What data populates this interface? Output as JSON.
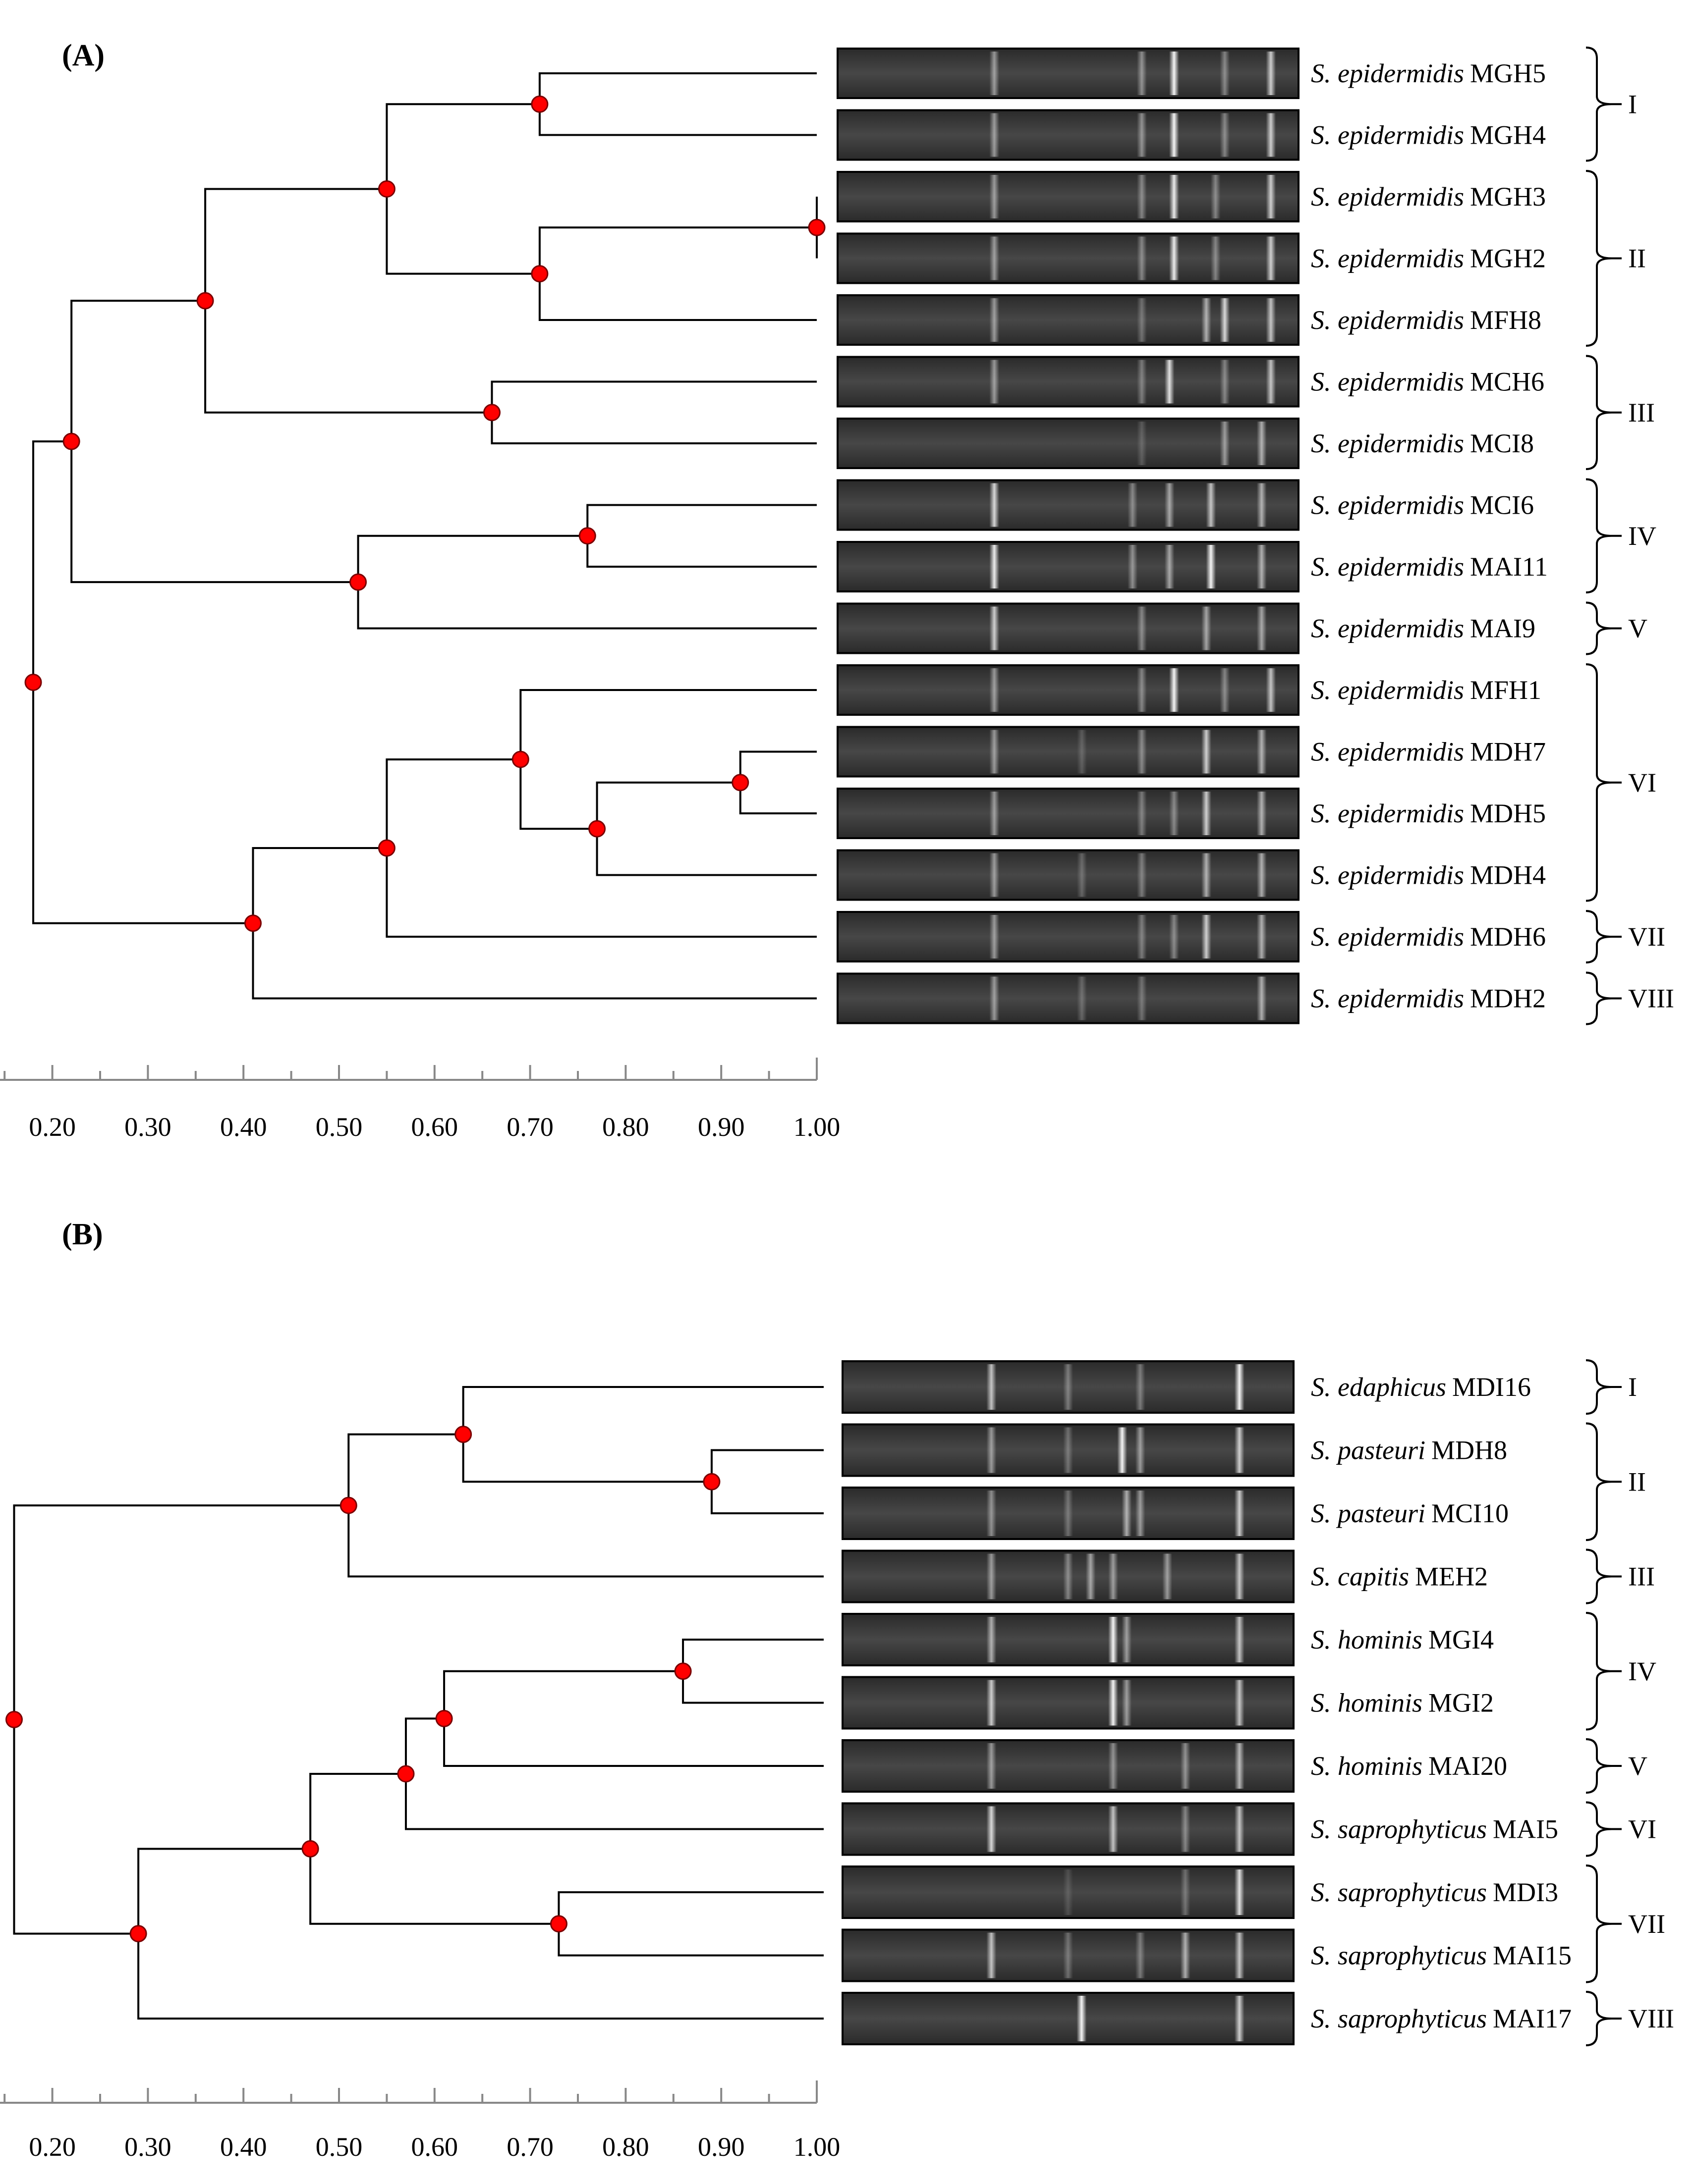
{
  "panels": [
    {
      "label": "(A)",
      "scale": {
        "ticks": [
          "0.20",
          "0.30",
          "0.40",
          "0.50",
          "0.60",
          "0.70",
          "0.80",
          "0.90",
          "1.00"
        ],
        "min": 0.14,
        "max": 1.0
      },
      "leaves": [
        {
          "species": "S. epidermidis",
          "strain": "MGH5"
        },
        {
          "species": "S. epidermidis",
          "strain": "MGH4"
        },
        {
          "species": "S. epidermidis",
          "strain": "MGH3"
        },
        {
          "species": "S. epidermidis",
          "strain": "MGH2"
        },
        {
          "species": "S. epidermidis",
          "strain": "MFH8"
        },
        {
          "species": "S. epidermidis",
          "strain": "MCH6"
        },
        {
          "species": "S. epidermidis",
          "strain": "MCI8"
        },
        {
          "species": "S. epidermidis",
          "strain": "MCI6"
        },
        {
          "species": "S. epidermidis",
          "strain": "MAI11"
        },
        {
          "species": "S. epidermidis",
          "strain": "MAI9"
        },
        {
          "species": "S. epidermidis",
          "strain": "MFH1"
        },
        {
          "species": "S. epidermidis",
          "strain": "MDH7"
        },
        {
          "species": "S. epidermidis",
          "strain": "MDH5"
        },
        {
          "species": "S. epidermidis",
          "strain": "MDH4"
        },
        {
          "species": "S. epidermidis",
          "strain": "MDH6"
        },
        {
          "species": "S. epidermidis",
          "strain": "MDH2"
        }
      ],
      "nodes": [
        {
          "sim": 0.71,
          "kids": [
            "L0",
            "L1"
          ]
        },
        {
          "sim": 1.0,
          "kids": [
            "L2",
            "L3"
          ]
        },
        {
          "sim": 0.71,
          "kids": [
            "N1",
            "L4"
          ]
        },
        {
          "sim": 0.55,
          "kids": [
            "N0",
            "N2"
          ]
        },
        {
          "sim": 0.66,
          "kids": [
            "L5",
            "L6"
          ]
        },
        {
          "sim": 0.36,
          "kids": [
            "N3",
            "N4"
          ]
        },
        {
          "sim": 0.76,
          "kids": [
            "L7",
            "L8"
          ]
        },
        {
          "sim": 0.52,
          "kids": [
            "N6",
            "L9"
          ]
        },
        {
          "sim": 0.22,
          "kids": [
            "N5",
            "N7"
          ]
        },
        {
          "sim": 0.92,
          "kids": [
            "L11",
            "L12"
          ]
        },
        {
          "sim": 0.77,
          "kids": [
            "N9",
            "L13"
          ]
        },
        {
          "sim": 0.69,
          "kids": [
            "L10",
            "N10"
          ]
        },
        {
          "sim": 0.55,
          "kids": [
            "N11",
            "L14"
          ]
        },
        {
          "sim": 0.41,
          "kids": [
            "N12",
            "L15"
          ]
        },
        {
          "sim": 0.18,
          "kids": [
            "N8",
            "N13"
          ]
        }
      ],
      "clusters": [
        {
          "label": "I",
          "from": 0,
          "to": 1
        },
        {
          "label": "II",
          "from": 2,
          "to": 4
        },
        {
          "label": "III",
          "from": 5,
          "to": 6
        },
        {
          "label": "IV",
          "from": 7,
          "to": 8
        },
        {
          "label": "V",
          "from": 9,
          "to": 9
        },
        {
          "label": "VI",
          "from": 10,
          "to": 13
        },
        {
          "label": "VII",
          "from": 14,
          "to": 14
        },
        {
          "label": "VIII",
          "from": 15,
          "to": 15
        }
      ],
      "bands": [
        [
          [
            0.34,
            0.5
          ],
          [
            0.66,
            0.45
          ],
          [
            0.73,
            0.95
          ],
          [
            0.84,
            0.4
          ],
          [
            0.94,
            0.75
          ]
        ],
        [
          [
            0.34,
            0.5
          ],
          [
            0.66,
            0.45
          ],
          [
            0.73,
            0.95
          ],
          [
            0.84,
            0.4
          ],
          [
            0.94,
            0.75
          ]
        ],
        [
          [
            0.34,
            0.5
          ],
          [
            0.66,
            0.4
          ],
          [
            0.73,
            0.9
          ],
          [
            0.82,
            0.4
          ],
          [
            0.94,
            0.75
          ]
        ],
        [
          [
            0.34,
            0.5
          ],
          [
            0.66,
            0.4
          ],
          [
            0.73,
            0.9
          ],
          [
            0.82,
            0.4
          ],
          [
            0.94,
            0.75
          ]
        ],
        [
          [
            0.34,
            0.5
          ],
          [
            0.66,
            0.3
          ],
          [
            0.8,
            0.6
          ],
          [
            0.84,
            0.8
          ],
          [
            0.94,
            0.7
          ]
        ],
        [
          [
            0.34,
            0.5
          ],
          [
            0.66,
            0.35
          ],
          [
            0.72,
            0.85
          ],
          [
            0.84,
            0.4
          ],
          [
            0.94,
            0.7
          ]
        ],
        [
          [
            0.66,
            0.2
          ],
          [
            0.84,
            0.5
          ],
          [
            0.92,
            0.6
          ]
        ],
        [
          [
            0.34,
            0.8
          ],
          [
            0.64,
            0.4
          ],
          [
            0.72,
            0.55
          ],
          [
            0.81,
            0.7
          ],
          [
            0.92,
            0.6
          ]
        ],
        [
          [
            0.34,
            0.9
          ],
          [
            0.64,
            0.45
          ],
          [
            0.72,
            0.55
          ],
          [
            0.81,
            0.95
          ],
          [
            0.92,
            0.6
          ]
        ],
        [
          [
            0.34,
            0.75
          ],
          [
            0.66,
            0.4
          ],
          [
            0.8,
            0.55
          ],
          [
            0.92,
            0.55
          ]
        ],
        [
          [
            0.34,
            0.5
          ],
          [
            0.66,
            0.4
          ],
          [
            0.73,
            0.95
          ],
          [
            0.84,
            0.4
          ],
          [
            0.94,
            0.7
          ]
        ],
        [
          [
            0.34,
            0.5
          ],
          [
            0.53,
            0.2
          ],
          [
            0.66,
            0.4
          ],
          [
            0.8,
            0.75
          ],
          [
            0.92,
            0.6
          ]
        ],
        [
          [
            0.34,
            0.5
          ],
          [
            0.66,
            0.35
          ],
          [
            0.73,
            0.4
          ],
          [
            0.8,
            0.75
          ],
          [
            0.92,
            0.6
          ]
        ],
        [
          [
            0.34,
            0.5
          ],
          [
            0.53,
            0.25
          ],
          [
            0.66,
            0.35
          ],
          [
            0.8,
            0.6
          ],
          [
            0.92,
            0.6
          ]
        ],
        [
          [
            0.34,
            0.5
          ],
          [
            0.66,
            0.35
          ],
          [
            0.73,
            0.4
          ],
          [
            0.8,
            0.75
          ],
          [
            0.92,
            0.6
          ]
        ],
        [
          [
            0.34,
            0.5
          ],
          [
            0.53,
            0.25
          ],
          [
            0.66,
            0.3
          ],
          [
            0.92,
            0.6
          ]
        ]
      ]
    },
    {
      "label": "(B)",
      "scale": {
        "ticks": [
          "0.20",
          "0.30",
          "0.40",
          "0.50",
          "0.60",
          "0.70",
          "0.80",
          "0.90",
          "1.00"
        ],
        "min": 0.14,
        "max": 1.0
      },
      "leaves": [
        {
          "species": "S. edaphicus",
          "strain": "MDI16"
        },
        {
          "species": "S. pasteuri",
          "strain": "MDH8"
        },
        {
          "species": "S. pasteuri",
          "strain": "MCI10"
        },
        {
          "species": "S. capitis",
          "strain": "MEH2"
        },
        {
          "species": "S. hominis",
          "strain": "MGI4"
        },
        {
          "species": "S. hominis",
          "strain": "MGI2"
        },
        {
          "species": "S. hominis",
          "strain": "MAI20"
        },
        {
          "species": "S. saprophyticus",
          "strain": "MAI5"
        },
        {
          "species": "S. saprophyticus",
          "strain": "MDI3"
        },
        {
          "species": "S. saprophyticus",
          "strain": "MAI15"
        },
        {
          "species": "S. saprophyticus",
          "strain": "MAI17"
        }
      ],
      "nodes": [
        {
          "sim": 0.89,
          "kids": [
            "L1",
            "L2"
          ]
        },
        {
          "sim": 0.63,
          "kids": [
            "L0",
            "N0"
          ]
        },
        {
          "sim": 0.51,
          "kids": [
            "N1",
            "L3"
          ]
        },
        {
          "sim": 0.86,
          "kids": [
            "L4",
            "L5"
          ]
        },
        {
          "sim": 0.61,
          "kids": [
            "N3",
            "L6"
          ]
        },
        {
          "sim": 0.57,
          "kids": [
            "N4",
            "L7"
          ]
        },
        {
          "sim": 0.73,
          "kids": [
            "L8",
            "L9"
          ]
        },
        {
          "sim": 0.47,
          "kids": [
            "N5",
            "N6"
          ]
        },
        {
          "sim": 0.29,
          "kids": [
            "N7",
            "L10"
          ]
        },
        {
          "sim": 0.16,
          "kids": [
            "N2",
            "N8"
          ]
        }
      ],
      "clusters": [
        {
          "label": "I",
          "from": 0,
          "to": 0
        },
        {
          "label": "II",
          "from": 1,
          "to": 2
        },
        {
          "label": "III",
          "from": 3,
          "to": 3
        },
        {
          "label": "IV",
          "from": 4,
          "to": 5
        },
        {
          "label": "V",
          "from": 6,
          "to": 6
        },
        {
          "label": "VI",
          "from": 7,
          "to": 7
        },
        {
          "label": "VII",
          "from": 8,
          "to": 9
        },
        {
          "label": "VIII",
          "from": 10,
          "to": 10
        }
      ],
      "bands": [
        [
          [
            0.33,
            0.7
          ],
          [
            0.5,
            0.35
          ],
          [
            0.66,
            0.35
          ],
          [
            0.88,
            0.95
          ]
        ],
        [
          [
            0.33,
            0.5
          ],
          [
            0.5,
            0.3
          ],
          [
            0.62,
            0.95
          ],
          [
            0.66,
            0.5
          ],
          [
            0.88,
            0.75
          ]
        ],
        [
          [
            0.33,
            0.45
          ],
          [
            0.5,
            0.3
          ],
          [
            0.63,
            0.6
          ],
          [
            0.66,
            0.5
          ],
          [
            0.88,
            0.75
          ]
        ],
        [
          [
            0.33,
            0.5
          ],
          [
            0.5,
            0.4
          ],
          [
            0.55,
            0.55
          ],
          [
            0.6,
            0.5
          ],
          [
            0.72,
            0.5
          ],
          [
            0.88,
            0.7
          ]
        ],
        [
          [
            0.33,
            0.6
          ],
          [
            0.6,
            0.95
          ],
          [
            0.63,
            0.5
          ],
          [
            0.88,
            0.7
          ]
        ],
        [
          [
            0.33,
            0.75
          ],
          [
            0.6,
            0.95
          ],
          [
            0.63,
            0.5
          ],
          [
            0.88,
            0.7
          ]
        ],
        [
          [
            0.33,
            0.5
          ],
          [
            0.6,
            0.45
          ],
          [
            0.76,
            0.45
          ],
          [
            0.88,
            0.65
          ]
        ],
        [
          [
            0.33,
            0.8
          ],
          [
            0.6,
            0.7
          ],
          [
            0.76,
            0.4
          ],
          [
            0.88,
            0.7
          ]
        ],
        [
          [
            0.5,
            0.15
          ],
          [
            0.76,
            0.3
          ],
          [
            0.88,
            0.85
          ]
        ],
        [
          [
            0.33,
            0.7
          ],
          [
            0.5,
            0.3
          ],
          [
            0.66,
            0.35
          ],
          [
            0.76,
            0.6
          ],
          [
            0.88,
            0.7
          ]
        ],
        [
          [
            0.53,
            0.95
          ],
          [
            0.88,
            0.75
          ]
        ]
      ]
    }
  ],
  "colors": {
    "node": "#ff0000",
    "line": "#000000",
    "gel_bg": "#3a3a3a"
  }
}
